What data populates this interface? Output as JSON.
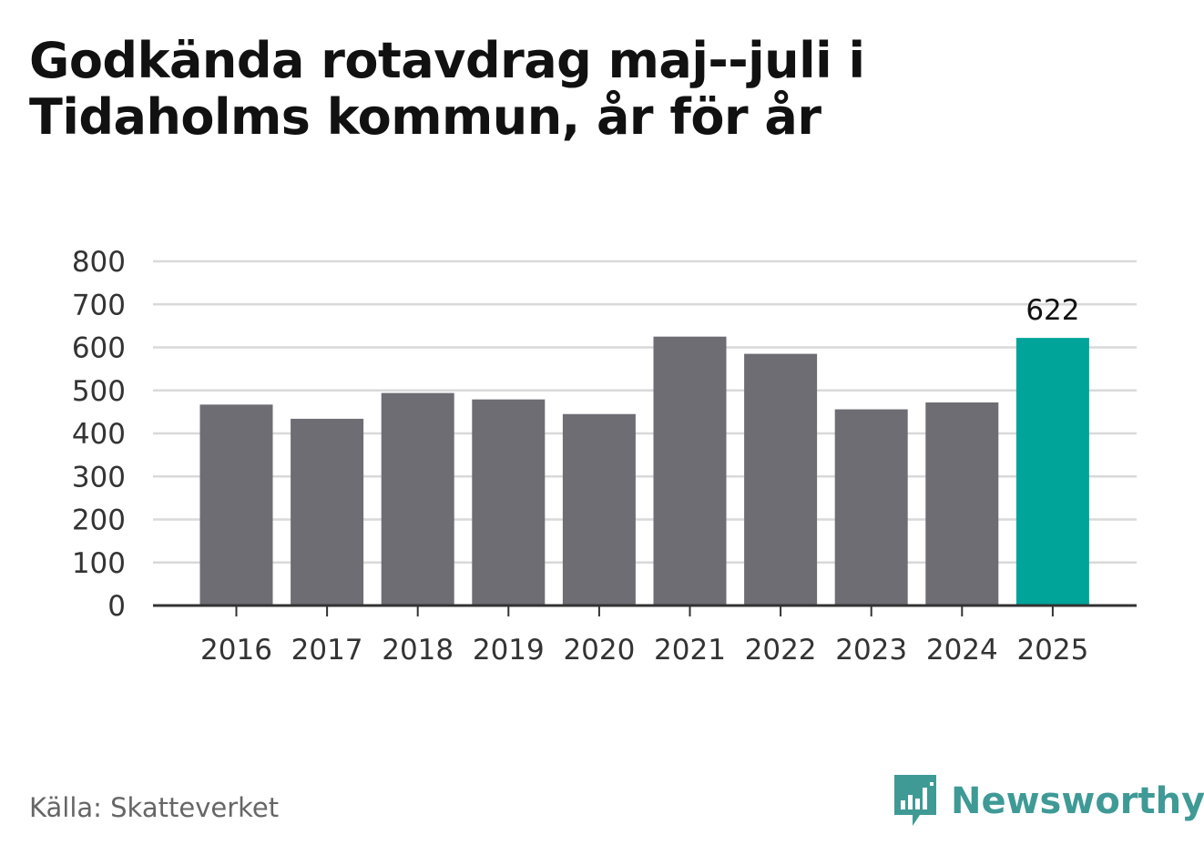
{
  "title": "Godkända rotavdrag maj--juli i Tidaholms kommun, år för år",
  "source": "Källa: Skatteverket",
  "brand": {
    "name": "Newsworthy",
    "icon": "bar-chart-speech-bubble-icon",
    "color": "#3f9a96"
  },
  "colors": {
    "bar": "#6e6d74",
    "highlight": "#00a499",
    "grid": "#d9d9d9",
    "axis": "#333333"
  },
  "chart_data": {
    "type": "bar",
    "title": "Godkända rotavdrag maj--juli i Tidaholms kommun, år för år",
    "categories": [
      "2016",
      "2017",
      "2018",
      "2019",
      "2020",
      "2021",
      "2022",
      "2023",
      "2024",
      "2025"
    ],
    "values": [
      467,
      434,
      494,
      479,
      445,
      625,
      585,
      456,
      472,
      622
    ],
    "highlight_index": 9,
    "data_labels": {
      "9": "622"
    },
    "ylim": [
      0,
      800
    ],
    "yticks": [
      0,
      100,
      200,
      300,
      400,
      500,
      600,
      700,
      800
    ],
    "grid": true,
    "xlabel": "",
    "ylabel": ""
  }
}
